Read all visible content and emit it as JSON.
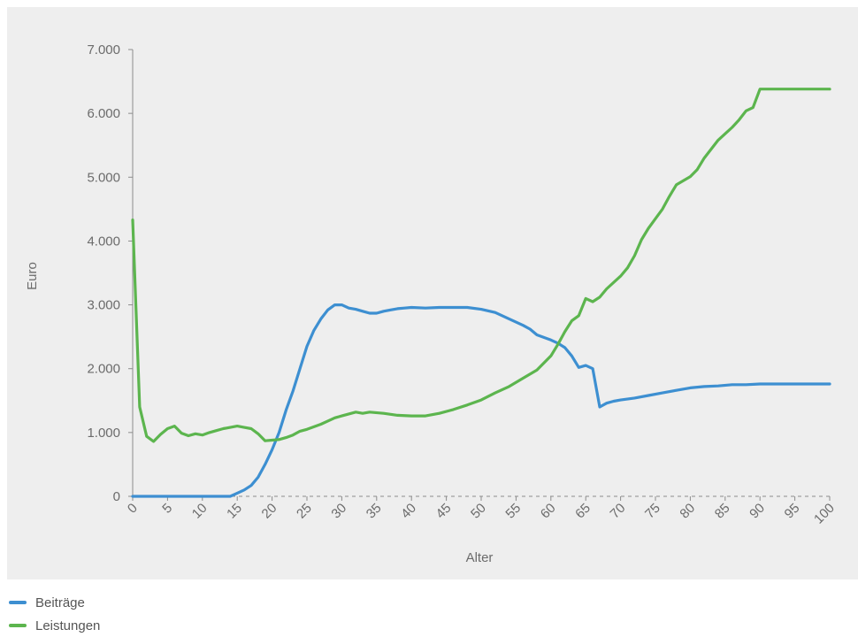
{
  "chart_data": {
    "type": "line",
    "title": "",
    "xlabel": "Alter",
    "ylabel": "Euro",
    "xlim": [
      0,
      100
    ],
    "ylim": [
      0,
      7000
    ],
    "x_ticks": [
      "0",
      "5",
      "10",
      "15",
      "20",
      "25",
      "30",
      "35",
      "40",
      "45",
      "50",
      "55",
      "60",
      "65",
      "70",
      "75",
      "80",
      "85",
      "90",
      "95",
      "100"
    ],
    "y_ticks": [
      "0",
      "1.000",
      "2.000",
      "3.000",
      "4.000",
      "5.000",
      "6.000",
      "7.000"
    ],
    "legend_position": "bottom-left",
    "grid": false,
    "series": [
      {
        "name": "Beiträge",
        "color": "#3d8fd1",
        "points": [
          [
            0,
            0
          ],
          [
            14,
            0
          ],
          [
            15,
            50
          ],
          [
            16,
            100
          ],
          [
            17,
            170
          ],
          [
            18,
            300
          ],
          [
            19,
            500
          ],
          [
            20,
            730
          ],
          [
            21,
            1000
          ],
          [
            22,
            1350
          ],
          [
            23,
            1650
          ],
          [
            24,
            2000
          ],
          [
            25,
            2350
          ],
          [
            26,
            2600
          ],
          [
            27,
            2780
          ],
          [
            28,
            2920
          ],
          [
            29,
            3000
          ],
          [
            30,
            3000
          ],
          [
            31,
            2950
          ],
          [
            32,
            2930
          ],
          [
            33,
            2900
          ],
          [
            34,
            2870
          ],
          [
            35,
            2870
          ],
          [
            36,
            2900
          ],
          [
            37,
            2920
          ],
          [
            38,
            2940
          ],
          [
            39,
            2950
          ],
          [
            40,
            2960
          ],
          [
            42,
            2950
          ],
          [
            44,
            2960
          ],
          [
            46,
            2960
          ],
          [
            48,
            2960
          ],
          [
            50,
            2930
          ],
          [
            52,
            2880
          ],
          [
            54,
            2780
          ],
          [
            56,
            2680
          ],
          [
            57,
            2620
          ],
          [
            58,
            2530
          ],
          [
            60,
            2450
          ],
          [
            61,
            2400
          ],
          [
            62,
            2330
          ],
          [
            63,
            2200
          ],
          [
            64,
            2020
          ],
          [
            65,
            2050
          ],
          [
            66,
            2000
          ],
          [
            67,
            1400
          ],
          [
            68,
            1460
          ],
          [
            69,
            1490
          ],
          [
            70,
            1510
          ],
          [
            72,
            1540
          ],
          [
            74,
            1580
          ],
          [
            76,
            1620
          ],
          [
            78,
            1660
          ],
          [
            80,
            1700
          ],
          [
            82,
            1720
          ],
          [
            84,
            1730
          ],
          [
            86,
            1750
          ],
          [
            88,
            1750
          ],
          [
            90,
            1760
          ],
          [
            95,
            1760
          ],
          [
            100,
            1760
          ]
        ]
      },
      {
        "name": "Leistungen",
        "color": "#5cb54e",
        "points": [
          [
            0,
            4330
          ],
          [
            1,
            1400
          ],
          [
            2,
            940
          ],
          [
            3,
            860
          ],
          [
            4,
            970
          ],
          [
            5,
            1060
          ],
          [
            6,
            1100
          ],
          [
            7,
            990
          ],
          [
            8,
            950
          ],
          [
            9,
            980
          ],
          [
            10,
            960
          ],
          [
            11,
            1000
          ],
          [
            12,
            1030
          ],
          [
            13,
            1060
          ],
          [
            14,
            1080
          ],
          [
            15,
            1100
          ],
          [
            16,
            1080
          ],
          [
            17,
            1060
          ],
          [
            18,
            980
          ],
          [
            19,
            870
          ],
          [
            20,
            880
          ],
          [
            21,
            890
          ],
          [
            22,
            920
          ],
          [
            23,
            960
          ],
          [
            24,
            1020
          ],
          [
            25,
            1050
          ],
          [
            26,
            1090
          ],
          [
            27,
            1130
          ],
          [
            28,
            1180
          ],
          [
            29,
            1230
          ],
          [
            30,
            1260
          ],
          [
            31,
            1290
          ],
          [
            32,
            1320
          ],
          [
            33,
            1300
          ],
          [
            34,
            1320
          ],
          [
            36,
            1300
          ],
          [
            38,
            1270
          ],
          [
            40,
            1260
          ],
          [
            42,
            1260
          ],
          [
            44,
            1300
          ],
          [
            46,
            1360
          ],
          [
            48,
            1430
          ],
          [
            50,
            1510
          ],
          [
            52,
            1620
          ],
          [
            54,
            1720
          ],
          [
            56,
            1850
          ],
          [
            58,
            1980
          ],
          [
            60,
            2200
          ],
          [
            61,
            2380
          ],
          [
            62,
            2580
          ],
          [
            63,
            2750
          ],
          [
            64,
            2830
          ],
          [
            65,
            3100
          ],
          [
            66,
            3050
          ],
          [
            67,
            3120
          ],
          [
            68,
            3250
          ],
          [
            70,
            3450
          ],
          [
            71,
            3580
          ],
          [
            72,
            3770
          ],
          [
            73,
            4020
          ],
          [
            74,
            4200
          ],
          [
            75,
            4350
          ],
          [
            76,
            4500
          ],
          [
            77,
            4700
          ],
          [
            78,
            4880
          ],
          [
            80,
            5010
          ],
          [
            81,
            5120
          ],
          [
            82,
            5300
          ],
          [
            84,
            5580
          ],
          [
            85,
            5680
          ],
          [
            86,
            5780
          ],
          [
            87,
            5900
          ],
          [
            88,
            6040
          ],
          [
            89,
            6090
          ],
          [
            90,
            6380
          ],
          [
            95,
            6380
          ],
          [
            100,
            6380
          ]
        ]
      }
    ]
  }
}
